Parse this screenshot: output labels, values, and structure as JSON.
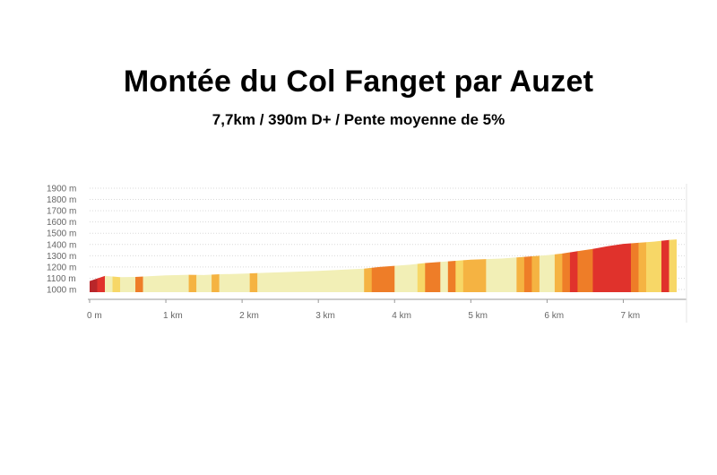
{
  "title": "Montée du Col Fanget par Auzet",
  "subtitle": "7,7km / 390m D+ / Pente moyenne de 5%",
  "chart_data": {
    "type": "area",
    "xlabel": "",
    "ylabel": "",
    "xlim": [
      0,
      7.7
    ],
    "ylim": [
      1000,
      1900
    ],
    "y_ticks": [
      "1900 m",
      "1800 m",
      "1700 m",
      "1600 m",
      "1500 m",
      "1400 m",
      "1300 m",
      "1200 m",
      "1100 m",
      "1000 m"
    ],
    "y_tick_values": [
      1900,
      1800,
      1700,
      1600,
      1500,
      1400,
      1300,
      1200,
      1100,
      1000
    ],
    "x_ticks": [
      "0 m",
      "1 km",
      "2 km",
      "3 km",
      "4 km",
      "5 km",
      "6 km",
      "7 km"
    ],
    "x_tick_values": [
      0,
      1,
      2,
      3,
      4,
      5,
      6,
      7
    ],
    "grid": true,
    "colors": {
      "very_easy": "#f2efb6",
      "easy": "#f7d767",
      "moderate": "#f5b342",
      "steep": "#ee7d28",
      "very_steep": "#e0322c",
      "extreme": "#b8262a",
      "grid": "#d9d9d9",
      "axis": "#999999",
      "tick_text": "#666666"
    },
    "profile_x": [
      0,
      0.2,
      0.3,
      0.4,
      0.6,
      0.8,
      1.0,
      1.3,
      1.5,
      1.7,
      2.0,
      2.3,
      2.6,
      3.0,
      3.3,
      3.6,
      3.8,
      4.0,
      4.2,
      4.4,
      4.6,
      4.8,
      5.0,
      5.2,
      5.4,
      5.6,
      5.8,
      6.0,
      6.2,
      6.4,
      6.6,
      6.8,
      7.0,
      7.2,
      7.4,
      7.6,
      7.7
    ],
    "profile_y": [
      1075,
      1120,
      1115,
      1110,
      1112,
      1118,
      1125,
      1130,
      1128,
      1135,
      1140,
      1148,
      1155,
      1165,
      1175,
      1185,
      1200,
      1210,
      1220,
      1235,
      1245,
      1255,
      1265,
      1270,
      1275,
      1285,
      1295,
      1305,
      1320,
      1340,
      1360,
      1385,
      1405,
      1415,
      1425,
      1440,
      1445
    ],
    "segments": [
      {
        "from": 0.0,
        "to": 0.1,
        "grade": "extreme"
      },
      {
        "from": 0.1,
        "to": 0.2,
        "grade": "very_steep"
      },
      {
        "from": 0.2,
        "to": 0.3,
        "grade": "very_easy"
      },
      {
        "from": 0.3,
        "to": 0.4,
        "grade": "easy"
      },
      {
        "from": 0.4,
        "to": 0.6,
        "grade": "very_easy"
      },
      {
        "from": 0.6,
        "to": 0.7,
        "grade": "steep"
      },
      {
        "from": 0.7,
        "to": 1.3,
        "grade": "very_easy"
      },
      {
        "from": 1.3,
        "to": 1.4,
        "grade": "moderate"
      },
      {
        "from": 1.4,
        "to": 1.6,
        "grade": "very_easy"
      },
      {
        "from": 1.6,
        "to": 1.7,
        "grade": "moderate"
      },
      {
        "from": 1.7,
        "to": 2.1,
        "grade": "very_easy"
      },
      {
        "from": 2.1,
        "to": 2.2,
        "grade": "moderate"
      },
      {
        "from": 2.2,
        "to": 3.6,
        "grade": "very_easy"
      },
      {
        "from": 3.6,
        "to": 3.7,
        "grade": "moderate"
      },
      {
        "from": 3.7,
        "to": 4.0,
        "grade": "steep"
      },
      {
        "from": 4.0,
        "to": 4.3,
        "grade": "very_easy"
      },
      {
        "from": 4.3,
        "to": 4.4,
        "grade": "easy"
      },
      {
        "from": 4.4,
        "to": 4.6,
        "grade": "steep"
      },
      {
        "from": 4.6,
        "to": 4.7,
        "grade": "very_easy"
      },
      {
        "from": 4.7,
        "to": 4.8,
        "grade": "steep"
      },
      {
        "from": 4.8,
        "to": 4.9,
        "grade": "easy"
      },
      {
        "from": 4.9,
        "to": 5.2,
        "grade": "moderate"
      },
      {
        "from": 5.2,
        "to": 5.6,
        "grade": "very_easy"
      },
      {
        "from": 5.6,
        "to": 5.7,
        "grade": "moderate"
      },
      {
        "from": 5.7,
        "to": 5.8,
        "grade": "steep"
      },
      {
        "from": 5.8,
        "to": 5.9,
        "grade": "moderate"
      },
      {
        "from": 5.9,
        "to": 6.1,
        "grade": "very_easy"
      },
      {
        "from": 6.1,
        "to": 6.2,
        "grade": "moderate"
      },
      {
        "from": 6.2,
        "to": 6.3,
        "grade": "steep"
      },
      {
        "from": 6.3,
        "to": 6.4,
        "grade": "very_steep"
      },
      {
        "from": 6.4,
        "to": 6.6,
        "grade": "steep"
      },
      {
        "from": 6.6,
        "to": 7.1,
        "grade": "very_steep"
      },
      {
        "from": 7.1,
        "to": 7.2,
        "grade": "steep"
      },
      {
        "from": 7.2,
        "to": 7.3,
        "grade": "moderate"
      },
      {
        "from": 7.3,
        "to": 7.5,
        "grade": "easy"
      },
      {
        "from": 7.5,
        "to": 7.6,
        "grade": "very_steep"
      },
      {
        "from": 7.6,
        "to": 7.7,
        "grade": "easy"
      }
    ]
  }
}
